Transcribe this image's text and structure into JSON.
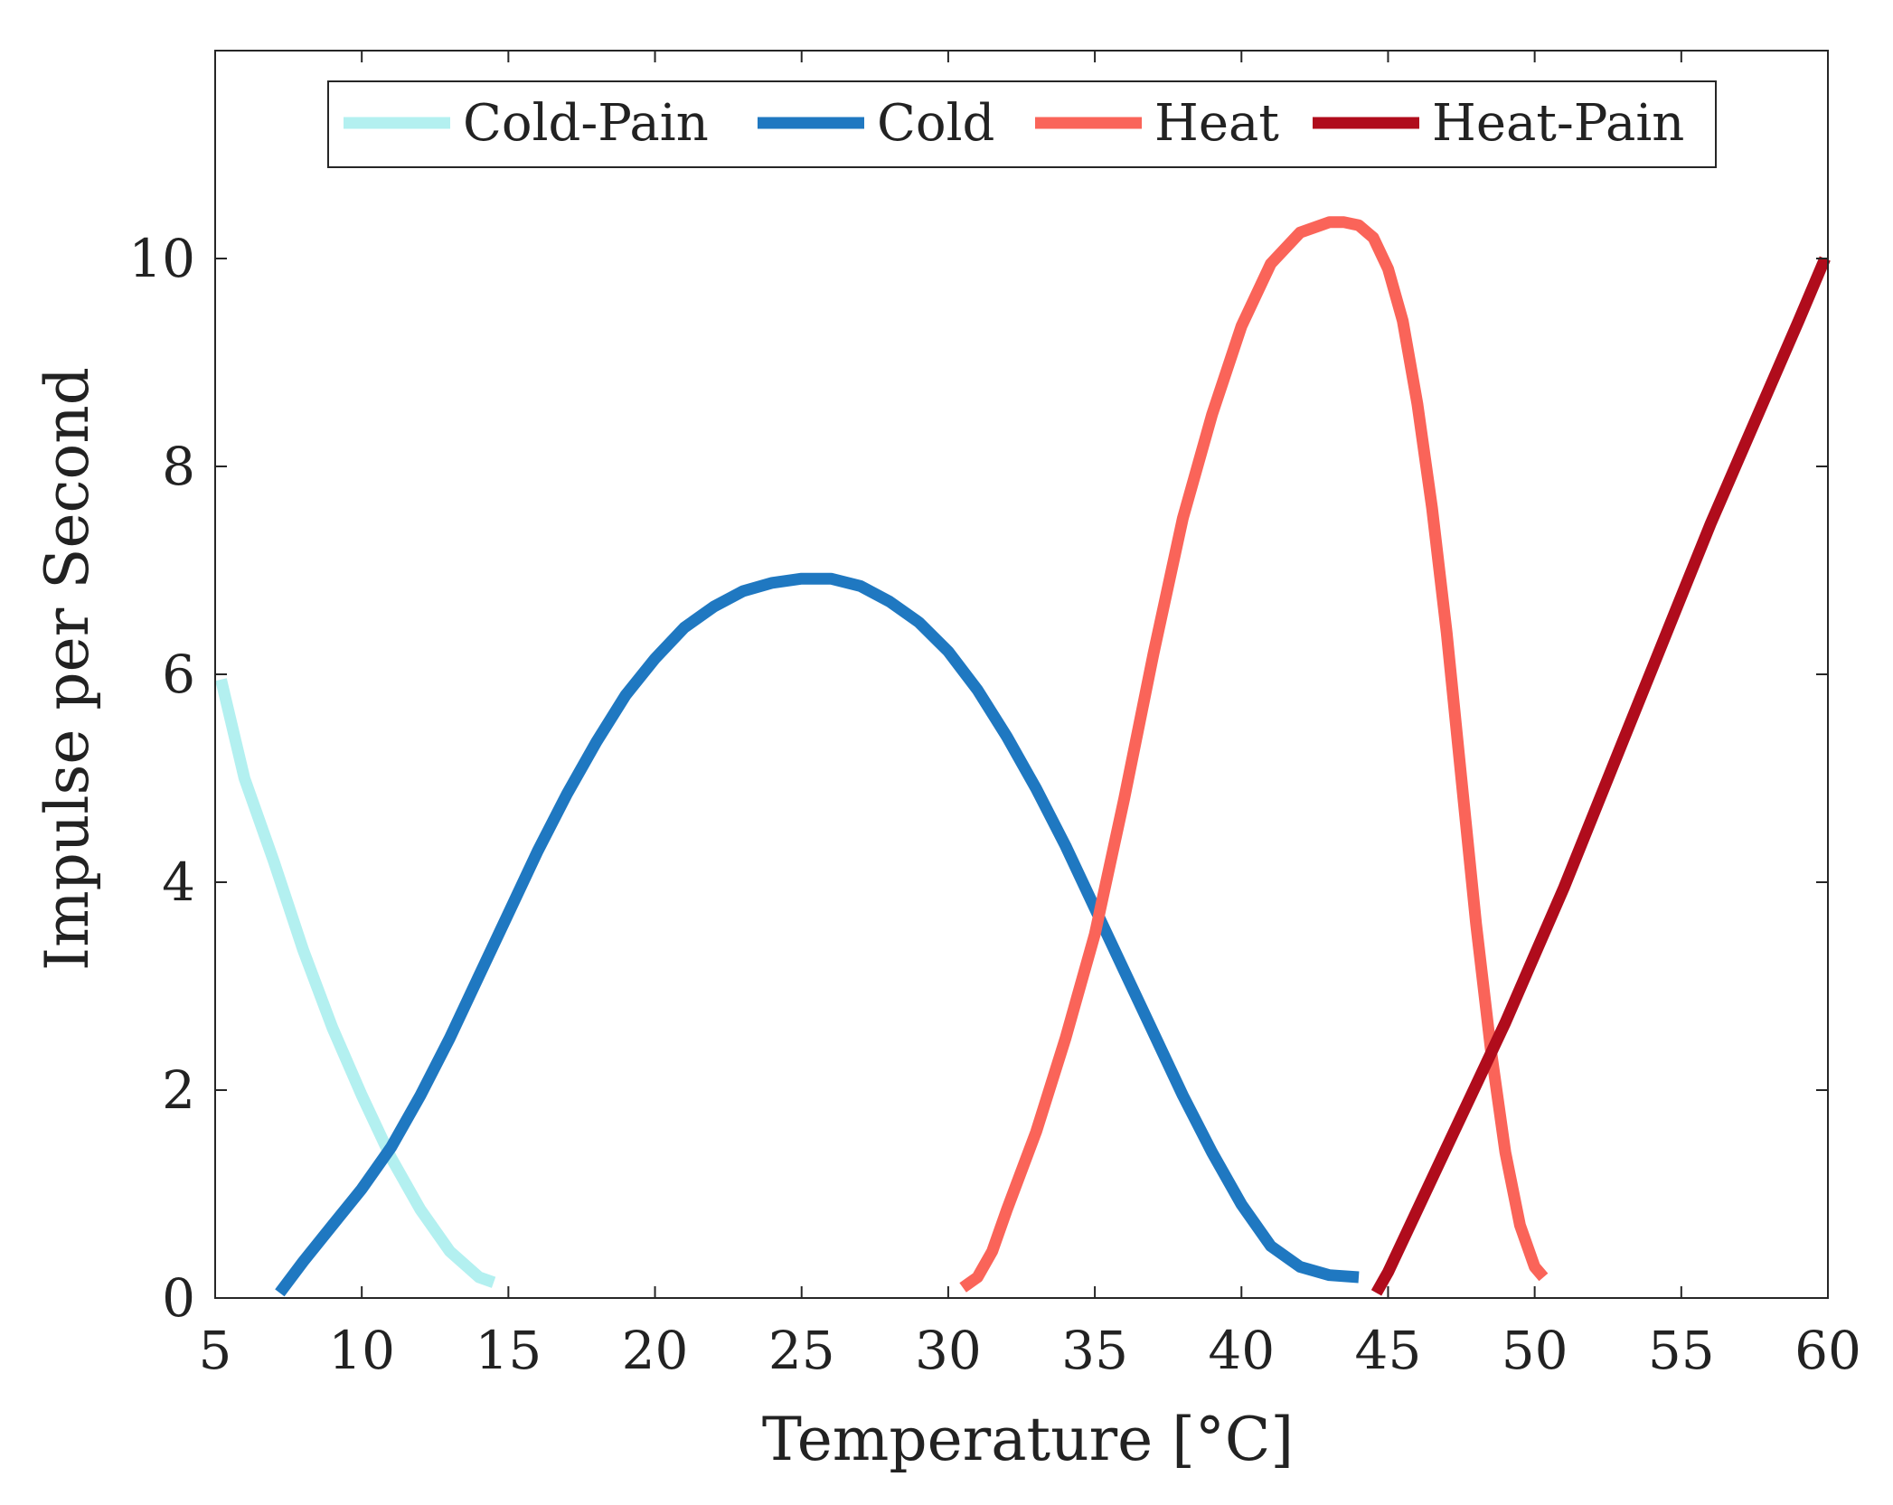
{
  "chart_data": {
    "type": "line",
    "title": "",
    "xlabel": "Temperature [°C]",
    "ylabel": "Impulse per Second",
    "xlim": [
      5,
      60
    ],
    "ylim": [
      0,
      12
    ],
    "xticks": [
      5,
      10,
      15,
      20,
      25,
      30,
      35,
      40,
      45,
      50,
      55,
      60
    ],
    "yticks": [
      0,
      2,
      4,
      6,
      8,
      10
    ],
    "grid": false,
    "legend_position": "top",
    "series": [
      {
        "name": "Cold-Pain",
        "color": "#b3f0f0",
        "x": [
          5.2,
          6,
          7,
          8,
          9,
          10,
          11,
          12,
          13,
          14,
          14.5
        ],
        "y": [
          5.95,
          5.0,
          4.2,
          3.35,
          2.6,
          1.95,
          1.35,
          0.85,
          0.45,
          0.2,
          0.15
        ]
      },
      {
        "name": "Cold",
        "color": "#1f78c1",
        "x": [
          7.2,
          8,
          9,
          10,
          11,
          12,
          13,
          14,
          15,
          16,
          17,
          18,
          19,
          20,
          21,
          22,
          23,
          24,
          25,
          26,
          27,
          28,
          29,
          30,
          31,
          32,
          33,
          34,
          35,
          36,
          37,
          38,
          39,
          40,
          41,
          42,
          43,
          44
        ],
        "y": [
          0.05,
          0.35,
          0.7,
          1.05,
          1.45,
          1.95,
          2.5,
          3.1,
          3.7,
          4.3,
          4.85,
          5.35,
          5.8,
          6.15,
          6.45,
          6.65,
          6.8,
          6.88,
          6.92,
          6.92,
          6.85,
          6.7,
          6.5,
          6.22,
          5.85,
          5.4,
          4.9,
          4.35,
          3.75,
          3.15,
          2.55,
          1.95,
          1.4,
          0.9,
          0.5,
          0.3,
          0.22,
          0.2
        ]
      },
      {
        "name": "Heat",
        "color": "#fa6459",
        "x": [
          30.5,
          31,
          31.5,
          32,
          33,
          34,
          35,
          36,
          37,
          38,
          39,
          40,
          41,
          42,
          43,
          43.5,
          44,
          44.5,
          45,
          45.5,
          46,
          46.5,
          47,
          47.5,
          48,
          48.5,
          49,
          49.5,
          50,
          50.3
        ],
        "y": [
          0.1,
          0.2,
          0.45,
          0.85,
          1.6,
          2.5,
          3.5,
          4.8,
          6.2,
          7.5,
          8.5,
          9.35,
          9.95,
          10.25,
          10.35,
          10.35,
          10.32,
          10.2,
          9.9,
          9.4,
          8.6,
          7.6,
          6.4,
          5.0,
          3.6,
          2.4,
          1.4,
          0.7,
          0.3,
          0.2
        ]
      },
      {
        "name": "Heat-Pain",
        "color": "#b00c1c",
        "x": [
          44.6,
          45,
          46,
          47,
          48,
          49,
          50,
          51,
          52,
          53,
          54,
          55,
          56,
          57,
          58,
          59,
          59.9
        ],
        "y": [
          0.05,
          0.25,
          0.85,
          1.45,
          2.05,
          2.65,
          3.3,
          3.95,
          4.65,
          5.35,
          6.05,
          6.75,
          7.45,
          8.1,
          8.75,
          9.4,
          10.0
        ]
      }
    ]
  }
}
